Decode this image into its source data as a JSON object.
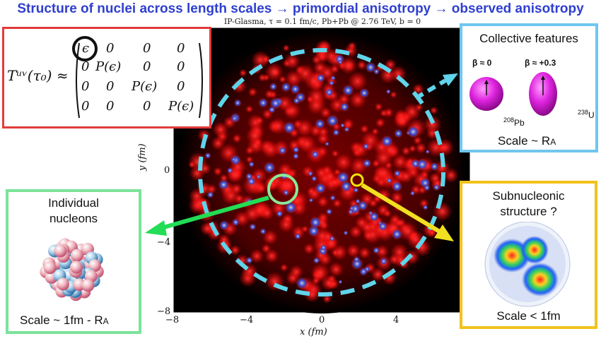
{
  "headline": "Structure of nuclei across length scales → primordial anisotropy → observed anisotropy",
  "plot": {
    "caption": "IP-Glasma, τ = 0.1 fm/c, Pb+Pb @ 2.76 TeV, b = 0",
    "xlabel": "x (fm)",
    "ylabel": "y (fm)",
    "xticks": [
      "−8",
      "−4",
      "0",
      "4"
    ],
    "yticks": [
      "0",
      "−4",
      "−8"
    ]
  },
  "tensor": {
    "lhs": "Tᵘᵛ(τ₀) ≈",
    "rows": [
      [
        "ϵ",
        "0",
        "0",
        "0"
      ],
      [
        "0",
        "P(ϵ)",
        "0",
        "0"
      ],
      [
        "0",
        "0",
        "P(ϵ)",
        "0"
      ],
      [
        "0",
        "0",
        "0",
        "P(ϵ)"
      ]
    ]
  },
  "collective": {
    "title": "Collective features",
    "beta_left": "β ≈ 0",
    "beta_right": "β ≈ +0.3",
    "label_pb_mass": "208",
    "label_pb": "Pb",
    "label_u_mass": "238",
    "label_u": "U",
    "scale": "Scale ~ R",
    "scale_sub": "A"
  },
  "nucleons": {
    "title_line1": "Individual",
    "title_line2": "nucleons",
    "scale": "Scale ~ 1fm - R",
    "scale_sub": "A"
  },
  "subnucleonic": {
    "title_line1": "Subnucleonic",
    "title_line2": "structure ?",
    "scale": "Scale < 1fm"
  },
  "colors": {
    "headline": "#2f3fcf",
    "red_frame": "#e23b3b",
    "blue_frame": "#6fc6f0",
    "green_frame": "#7be39a",
    "yellow_frame": "#f2c21d",
    "green_arrow": "#22dd55",
    "yellow_arrow": "#f0e020",
    "nucleus_magenta": "#d81ad8"
  }
}
